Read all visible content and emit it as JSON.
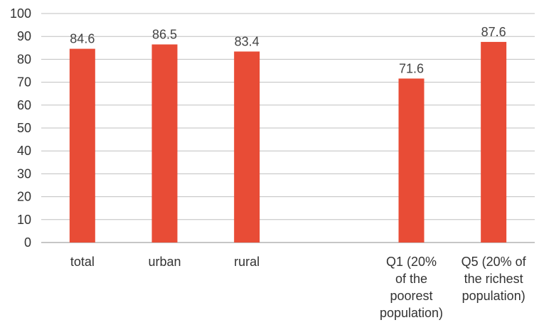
{
  "chart_data": {
    "type": "bar",
    "categories": [
      [
        "total"
      ],
      [
        "urban"
      ],
      [
        "rural"
      ],
      [],
      [
        "Q1 (20%",
        "of the",
        "poorest",
        "population)"
      ],
      [
        "Q5 (20% of",
        "the richest",
        "population)"
      ]
    ],
    "values": [
      84.6,
      86.5,
      83.4,
      null,
      71.6,
      87.6
    ],
    "data_labels": [
      "84.6",
      "86.5",
      "83.4",
      "",
      "71.6",
      "87.6"
    ],
    "title": "",
    "xlabel": "",
    "ylabel": "",
    "ylim": [
      0,
      100
    ],
    "yticks": [
      "0",
      "10",
      "20",
      "30",
      "40",
      "50",
      "60",
      "70",
      "80",
      "90",
      "100"
    ],
    "grid": true,
    "bar_color": "#e84c36"
  }
}
